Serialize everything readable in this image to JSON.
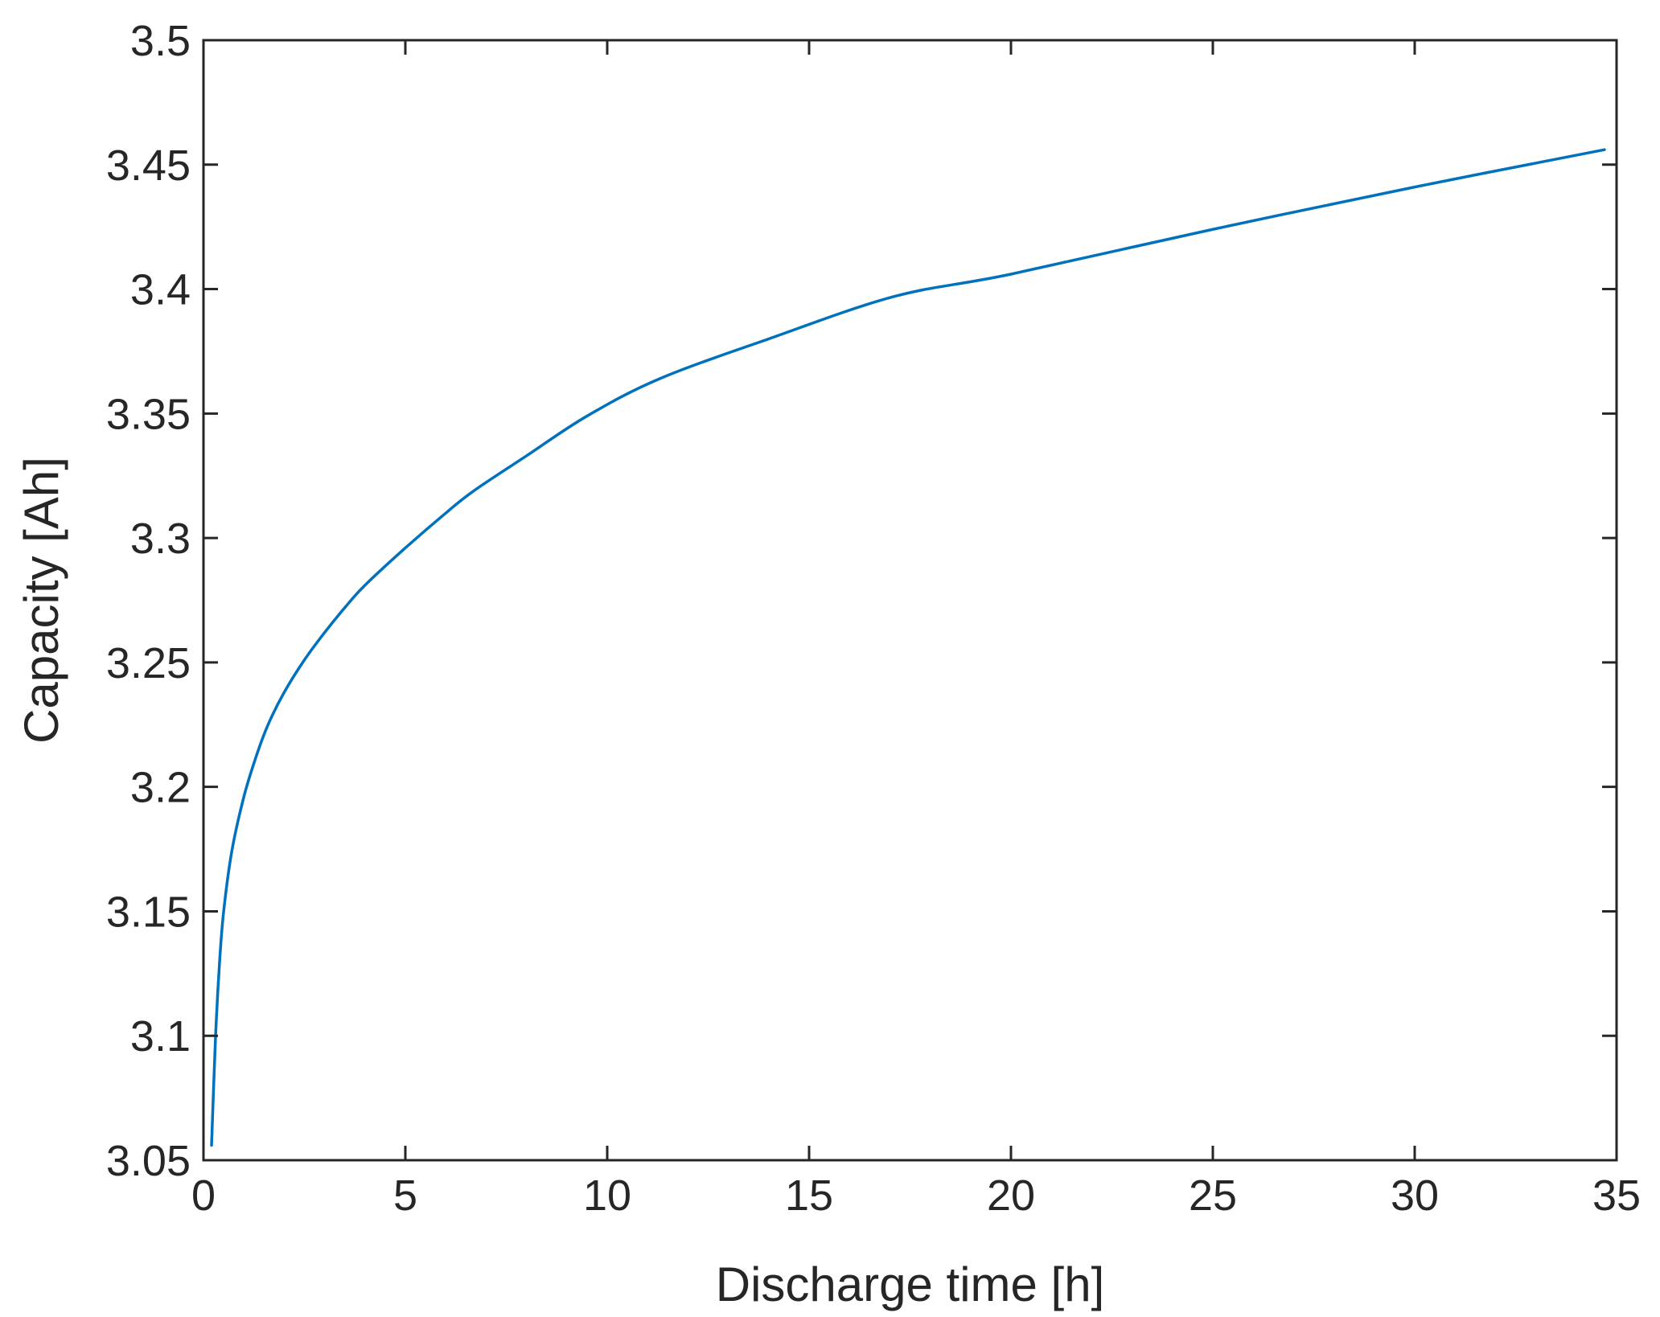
{
  "chart_data": {
    "type": "line",
    "title": "",
    "xlabel": "Discharge time [h]",
    "ylabel": "Capacity [Ah]",
    "xlim": [
      0,
      35
    ],
    "ylim": [
      3.05,
      3.5
    ],
    "x_ticks": [
      0,
      5,
      10,
      15,
      20,
      25,
      30,
      35
    ],
    "y_ticks": [
      3.05,
      3.1,
      3.15,
      3.2,
      3.25,
      3.3,
      3.35,
      3.4,
      3.45,
      3.5
    ],
    "x_tick_labels": [
      "0",
      "5",
      "10",
      "15",
      "20",
      "25",
      "30",
      "35"
    ],
    "y_tick_labels": [
      "3.05",
      "3.1",
      "3.15",
      "3.2",
      "3.25",
      "3.3",
      "3.35",
      "3.4",
      "3.45",
      "3.5"
    ],
    "grid": false,
    "legend": "none",
    "colors": {
      "line": "#0072BD",
      "axes": "#262626"
    },
    "series": [
      {
        "x": [
          0.2,
          0.3,
          0.4,
          0.5,
          0.7,
          1.0,
          1.3,
          1.6,
          2.0,
          2.5,
          3.0,
          3.5,
          4.0,
          5.0,
          6.0,
          6.7,
          8.0,
          9.5,
          11.3,
          14.0,
          17.1,
          20.0,
          25.0,
          30.0,
          34.7
        ],
        "y": [
          3.056,
          3.1,
          3.13,
          3.15,
          3.174,
          3.196,
          3.212,
          3.225,
          3.238,
          3.251,
          3.262,
          3.272,
          3.281,
          3.296,
          3.31,
          3.319,
          3.333,
          3.349,
          3.364,
          3.38,
          3.397,
          3.406,
          3.424,
          3.441,
          3.456
        ]
      }
    ]
  }
}
